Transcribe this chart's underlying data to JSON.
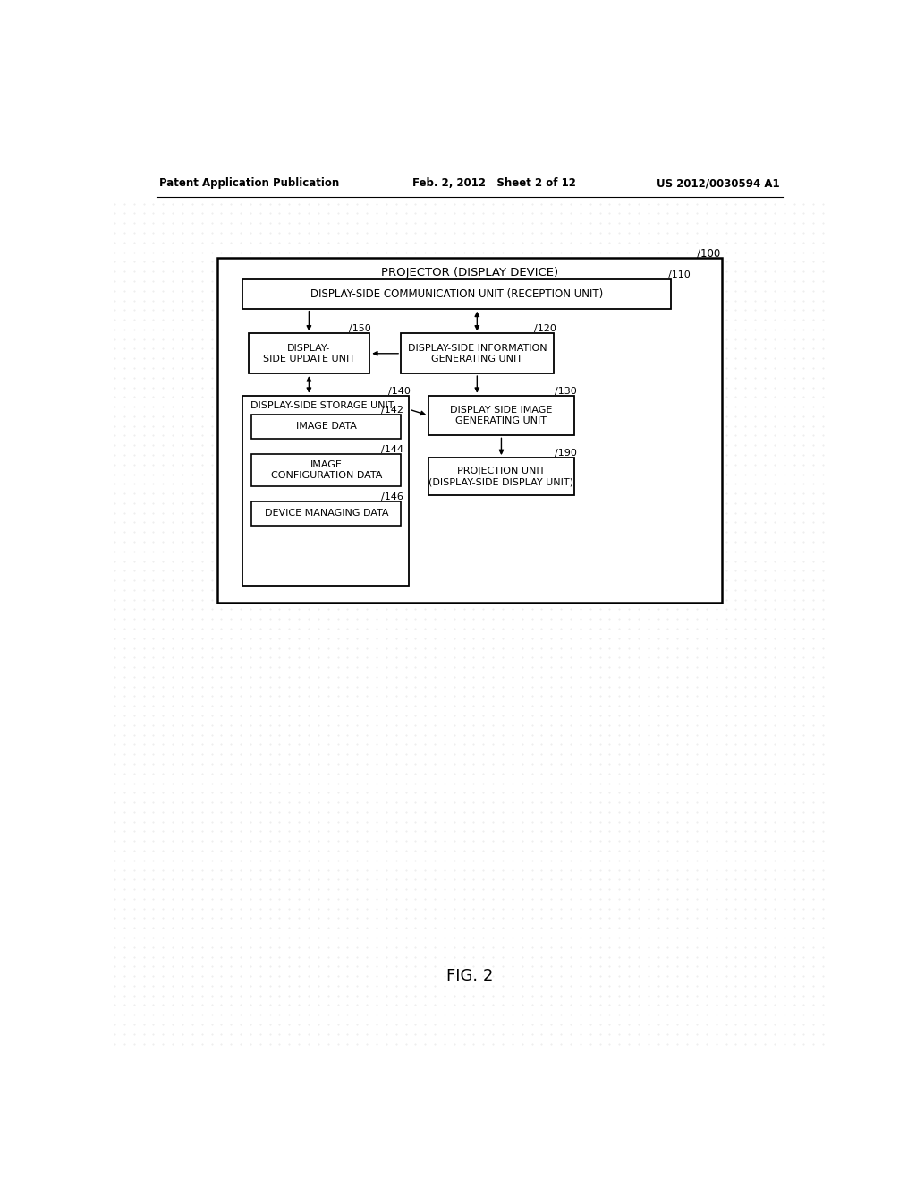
{
  "page_bg": "#ffffff",
  "header_left": "Patent Application Publication",
  "header_mid": "Feb. 2, 2012   Sheet 2 of 12",
  "header_right": "US 2012/0030594 A1",
  "fig_label": "FIG. 2",
  "outer_label": "/100",
  "outer_title": "PROJECTOR (DISPLAY DEVICE)",
  "box_comm": {
    "label": "DISPLAY-SIDE COMMUNICATION UNIT (RECEPTION UNIT)",
    "ref": "/110"
  },
  "box_update": {
    "label": "DISPLAY-\nSIDE UPDATE UNIT",
    "ref": "/150"
  },
  "box_info": {
    "label": "DISPLAY-SIDE INFORMATION\nGENERATING UNIT",
    "ref": "/120"
  },
  "box_storage": {
    "label": "DISPLAY-SIDE STORAGE UNIT",
    "ref": "/140"
  },
  "box_imggen": {
    "label": "DISPLAY SIDE IMAGE\nGENERATING UNIT",
    "ref": "/130"
  },
  "box_imgdata": {
    "label": "IMAGE DATA",
    "ref": "/142"
  },
  "box_imgcfg": {
    "label": "IMAGE\nCONFIGURATION DATA",
    "ref": "/144"
  },
  "box_devmgr": {
    "label": "DEVICE MANAGING DATA",
    "ref": "/146"
  },
  "box_proj": {
    "label": "PROJECTION UNIT\n(DISPLAY-SIDE DISPLAY UNIT)",
    "ref": "/190"
  },
  "grid_color": "#d8d8d8",
  "line_color": "#000000",
  "text_color": "#000000"
}
